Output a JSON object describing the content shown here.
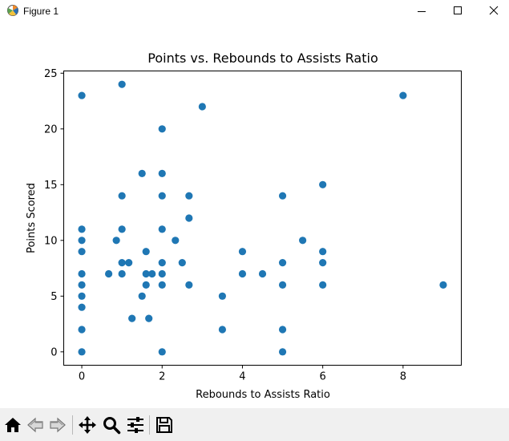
{
  "window": {
    "title": "Figure 1",
    "app_icon": "matplotlib-icon",
    "controls": [
      {
        "name": "minimize",
        "icon": "minimize-icon"
      },
      {
        "name": "maximize",
        "icon": "maximize-icon"
      },
      {
        "name": "close",
        "icon": "close-icon"
      }
    ]
  },
  "toolbar": {
    "buttons": [
      {
        "name": "home",
        "icon": "home-icon"
      },
      {
        "name": "back",
        "icon": "back-arrow-icon"
      },
      {
        "name": "forward",
        "icon": "forward-arrow-icon"
      },
      {
        "name": "pan",
        "icon": "move-icon"
      },
      {
        "name": "zoom",
        "icon": "zoom-icon"
      },
      {
        "name": "configure-subplots",
        "icon": "sliders-icon"
      },
      {
        "name": "save",
        "icon": "save-icon"
      }
    ]
  },
  "colors": {
    "marker": "#1f77b4",
    "toolbar_bg": "#f0f0f0"
  },
  "chart_data": {
    "type": "scatter",
    "title": "Points vs. Rebounds to Assists Ratio",
    "xlabel": "Rebounds to Assists Ratio",
    "ylabel": "Points Scored",
    "xlim": [
      -0.45,
      9.45
    ],
    "ylim": [
      -1.2,
      25.2
    ],
    "xticks": [
      0,
      2,
      4,
      6,
      8
    ],
    "yticks": [
      0,
      5,
      10,
      15,
      20,
      25
    ],
    "grid": false,
    "legend": false,
    "series": [
      {
        "points": [
          [
            0,
            23
          ],
          [
            0,
            11
          ],
          [
            0,
            10
          ],
          [
            0,
            9
          ],
          [
            0,
            7
          ],
          [
            0,
            6
          ],
          [
            0,
            5
          ],
          [
            0,
            4
          ],
          [
            0,
            2
          ],
          [
            0,
            0
          ],
          [
            0.67,
            7
          ],
          [
            0.86,
            10
          ],
          [
            1,
            24
          ],
          [
            1,
            14
          ],
          [
            1,
            11
          ],
          [
            1,
            8
          ],
          [
            1,
            7
          ],
          [
            1.17,
            8
          ],
          [
            1.25,
            3
          ],
          [
            1.5,
            16
          ],
          [
            1.5,
            5
          ],
          [
            1.6,
            9
          ],
          [
            1.6,
            7
          ],
          [
            1.6,
            6
          ],
          [
            1.67,
            3
          ],
          [
            1.75,
            7
          ],
          [
            2,
            20
          ],
          [
            2,
            16
          ],
          [
            2,
            14
          ],
          [
            2,
            11
          ],
          [
            2,
            8
          ],
          [
            2,
            7
          ],
          [
            2,
            6
          ],
          [
            2,
            0
          ],
          [
            2.33,
            10
          ],
          [
            2.5,
            8
          ],
          [
            2.67,
            14
          ],
          [
            2.67,
            12
          ],
          [
            2.67,
            6
          ],
          [
            3,
            22
          ],
          [
            3.5,
            5
          ],
          [
            3.5,
            2
          ],
          [
            4,
            9
          ],
          [
            4,
            7
          ],
          [
            4.5,
            7
          ],
          [
            5,
            14
          ],
          [
            5,
            8
          ],
          [
            5,
            6
          ],
          [
            5,
            2
          ],
          [
            5,
            0
          ],
          [
            5.5,
            10
          ],
          [
            6,
            15
          ],
          [
            6,
            9
          ],
          [
            6,
            8
          ],
          [
            6,
            6
          ],
          [
            8,
            23
          ],
          [
            9,
            6
          ]
        ]
      }
    ]
  }
}
